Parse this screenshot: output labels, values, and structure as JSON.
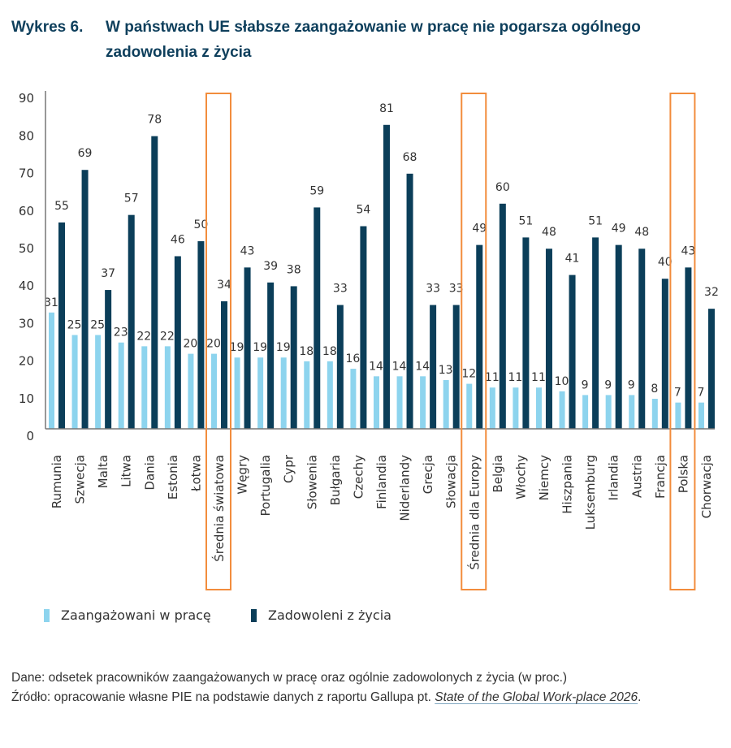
{
  "header": {
    "figure_number": "Wykres 6.",
    "title": "W państwach UE słabsze zaangażowanie w pracę nie pogarsza ogólnego zadowolenia z życia"
  },
  "colors": {
    "engaged": "#8dd4ee",
    "satisfied": "#0b3e59",
    "highlight": "#f28c3c",
    "axis": "#777777",
    "text": "#333333"
  },
  "chart_data": {
    "type": "bar",
    "title": "W państwach UE słabsze zaangażowanie w pracę nie pogarsza ogólnego zadowolenia z życia",
    "xlabel": "",
    "ylabel": "",
    "ylim": [
      0,
      90
    ],
    "yticks": [
      0,
      10,
      20,
      30,
      40,
      50,
      60,
      70,
      80,
      90
    ],
    "grid": false,
    "legend_position": "bottom-left",
    "categories": [
      "Rumunia",
      "Szwecja",
      "Malta",
      "Litwa",
      "Dania",
      "Estonia",
      "Łotwa",
      "Średnia światowa",
      "Węgry",
      "Portugalia",
      "Cypr",
      "Słowenia",
      "Bułgaria",
      "Czechy",
      "Finlandia",
      "Niderlandy",
      "Grecja",
      "Słowacja",
      "Średnia dla Europy",
      "Belgia",
      "Włochy",
      "Niemcy",
      "Hiszpania",
      "Luksemburg",
      "Irlandia",
      "Austria",
      "Francja",
      "Polska",
      "Chorwacja"
    ],
    "highlighted": [
      "Średnia światowa",
      "Średnia dla Europy",
      "Polska"
    ],
    "series": [
      {
        "name": "Zaangażowani w pracę",
        "values": [
          31,
          25,
          25,
          23,
          22,
          22,
          20,
          20,
          19,
          19,
          19,
          18,
          18,
          16,
          14,
          14,
          14,
          13,
          12,
          11,
          11,
          11,
          10,
          9,
          9,
          9,
          8,
          7,
          7
        ]
      },
      {
        "name": "Zadowoleni z życia",
        "values": [
          55,
          69,
          37,
          57,
          78,
          46,
          50,
          34,
          43,
          39,
          38,
          59,
          33,
          54,
          81,
          68,
          33,
          33,
          49,
          60,
          51,
          48,
          41,
          51,
          49,
          48,
          40,
          43,
          32
        ]
      }
    ]
  },
  "legend": {
    "items": [
      "Zaangażowani w pracę",
      "Zadowoleni z życia"
    ]
  },
  "notes": {
    "data": "Dane: odsetek pracowników zaangażowanych w pracę oraz ogólnie zadowolonych z życia (w proc.)",
    "source_prefix": "Źródło: opracowanie własne PIE na podstawie danych z raportu Gallupa pt. ",
    "source_title": "State of the Global Work-place 2026",
    "source_suffix": "."
  }
}
